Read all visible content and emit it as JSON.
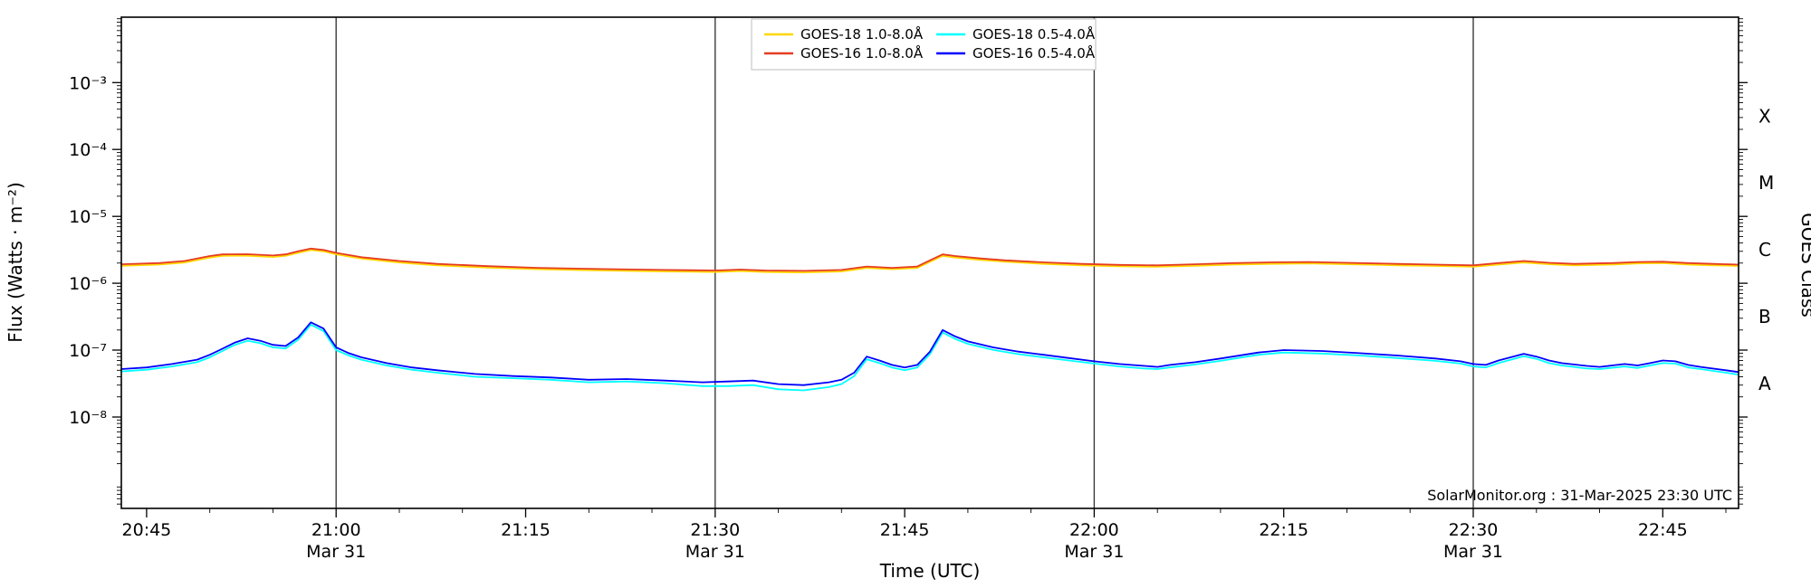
{
  "attribution": "SolarMonitor.org : 31-Mar-2025 23:30 UTC",
  "colors": {
    "background": "#ffffff",
    "axis": "#000000",
    "date_line": "#3a3a3a",
    "goes18_long": "#ffd700",
    "goes16_long": "#e63c22",
    "goes18_short": "#00ffff",
    "goes16_short": "#0000ff"
  },
  "chart_data": {
    "type": "line",
    "title": "",
    "xlabel": "Time (UTC)",
    "ylabel": "Flux (Watts · m⁻²)",
    "ylabel_right": "GOES Class",
    "x_axis_unit": "minutes-of-day UTC on 31-Mar-2025",
    "x_domain": [
      1243,
      1371
    ],
    "ylim": [
      4.3e-10,
      0.0095
    ],
    "y_scale": "log",
    "legend_position": "top-center",
    "grid": "vertical date lines only",
    "x_minor_step_min": 5,
    "date_lines": [
      1260,
      1290,
      1320,
      1350
    ],
    "x_ticks": [
      {
        "m": 1245,
        "label": "20:45",
        "date": ""
      },
      {
        "m": 1260,
        "label": "21:00",
        "date": "Mar 31"
      },
      {
        "m": 1275,
        "label": "21:15",
        "date": ""
      },
      {
        "m": 1290,
        "label": "21:30",
        "date": "Mar 31"
      },
      {
        "m": 1305,
        "label": "21:45",
        "date": ""
      },
      {
        "m": 1320,
        "label": "22:00",
        "date": "Mar 31"
      },
      {
        "m": 1335,
        "label": "22:15",
        "date": ""
      },
      {
        "m": 1350,
        "label": "22:30",
        "date": "Mar 31"
      },
      {
        "m": 1365,
        "label": "22:45",
        "date": ""
      }
    ],
    "y_ticks": [
      {
        "v": 0.001,
        "label": "10⁻³"
      },
      {
        "v": 0.0001,
        "label": "10⁻⁴"
      },
      {
        "v": 1e-05,
        "label": "10⁻⁵"
      },
      {
        "v": 1e-06,
        "label": "10⁻⁶"
      },
      {
        "v": 1e-07,
        "label": "10⁻⁷"
      },
      {
        "v": 1e-08,
        "label": "10⁻⁸"
      }
    ],
    "class_labels": [
      {
        "v": 0.000316,
        "label": "X"
      },
      {
        "v": 3.16e-05,
        "label": "M"
      },
      {
        "v": 3.16e-06,
        "label": "C"
      },
      {
        "v": 3.16e-07,
        "label": "B"
      },
      {
        "v": 3.16e-08,
        "label": "A"
      }
    ],
    "series": [
      {
        "id": "goes18-long",
        "label": "GOES-18 1.0-8.0Å",
        "color": "#ffd700",
        "points": [
          [
            1243,
            1.82e-06
          ],
          [
            1246,
            1.9e-06
          ],
          [
            1248,
            2.04e-06
          ],
          [
            1250,
            2.42e-06
          ],
          [
            1251,
            2.57e-06
          ],
          [
            1253,
            2.58e-06
          ],
          [
            1255,
            2.47e-06
          ],
          [
            1256,
            2.57e-06
          ],
          [
            1257,
            2.85e-06
          ],
          [
            1258,
            3.14e-06
          ],
          [
            1259,
            2.99e-06
          ],
          [
            1260,
            2.71e-06
          ],
          [
            1262,
            2.33e-06
          ],
          [
            1265,
            2.04e-06
          ],
          [
            1268,
            1.85e-06
          ],
          [
            1272,
            1.71e-06
          ],
          [
            1276,
            1.62e-06
          ],
          [
            1281,
            1.55e-06
          ],
          [
            1286,
            1.5e-06
          ],
          [
            1290,
            1.47e-06
          ],
          [
            1292,
            1.52e-06
          ],
          [
            1294,
            1.47e-06
          ],
          [
            1297,
            1.45e-06
          ],
          [
            1300,
            1.5e-06
          ],
          [
            1302,
            1.69e-06
          ],
          [
            1304,
            1.62e-06
          ],
          [
            1306,
            1.69e-06
          ],
          [
            1307,
            2.09e-06
          ],
          [
            1308,
            2.57e-06
          ],
          [
            1309,
            2.42e-06
          ],
          [
            1311,
            2.23e-06
          ],
          [
            1313,
            2.09e-06
          ],
          [
            1316,
            1.95e-06
          ],
          [
            1319,
            1.85e-06
          ],
          [
            1322,
            1.79e-06
          ],
          [
            1325,
            1.76e-06
          ],
          [
            1328,
            1.82e-06
          ],
          [
            1331,
            1.9e-06
          ],
          [
            1334,
            1.95e-06
          ],
          [
            1337,
            1.98e-06
          ],
          [
            1340,
            1.92e-06
          ],
          [
            1344,
            1.85e-06
          ],
          [
            1347,
            1.81e-06
          ],
          [
            1350,
            1.76e-06
          ],
          [
            1352,
            1.9e-06
          ],
          [
            1354,
            2.04e-06
          ],
          [
            1356,
            1.92e-06
          ],
          [
            1358,
            1.85e-06
          ],
          [
            1361,
            1.9e-06
          ],
          [
            1363,
            1.98e-06
          ],
          [
            1365,
            2e-06
          ],
          [
            1367,
            1.9e-06
          ],
          [
            1369,
            1.85e-06
          ],
          [
            1371,
            1.81e-06
          ]
        ]
      },
      {
        "id": "goes16-long",
        "label": "GOES-16 1.0-8.0Å",
        "color": "#e63c22",
        "points": [
          [
            1243,
            1.92e-06
          ],
          [
            1246,
            2e-06
          ],
          [
            1248,
            2.15e-06
          ],
          [
            1250,
            2.55e-06
          ],
          [
            1251,
            2.7e-06
          ],
          [
            1253,
            2.72e-06
          ],
          [
            1255,
            2.6e-06
          ],
          [
            1256,
            2.7e-06
          ],
          [
            1257,
            3e-06
          ],
          [
            1258,
            3.3e-06
          ],
          [
            1259,
            3.15e-06
          ],
          [
            1260,
            2.85e-06
          ],
          [
            1262,
            2.45e-06
          ],
          [
            1265,
            2.15e-06
          ],
          [
            1268,
            1.95e-06
          ],
          [
            1272,
            1.8e-06
          ],
          [
            1276,
            1.7e-06
          ],
          [
            1281,
            1.63e-06
          ],
          [
            1286,
            1.58e-06
          ],
          [
            1290,
            1.55e-06
          ],
          [
            1292,
            1.6e-06
          ],
          [
            1294,
            1.55e-06
          ],
          [
            1297,
            1.53e-06
          ],
          [
            1300,
            1.58e-06
          ],
          [
            1302,
            1.78e-06
          ],
          [
            1304,
            1.7e-06
          ],
          [
            1306,
            1.78e-06
          ],
          [
            1307,
            2.2e-06
          ],
          [
            1308,
            2.7e-06
          ],
          [
            1309,
            2.55e-06
          ],
          [
            1311,
            2.35e-06
          ],
          [
            1313,
            2.2e-06
          ],
          [
            1316,
            2.05e-06
          ],
          [
            1319,
            1.95e-06
          ],
          [
            1322,
            1.88e-06
          ],
          [
            1325,
            1.85e-06
          ],
          [
            1328,
            1.92e-06
          ],
          [
            1331,
            2e-06
          ],
          [
            1334,
            2.05e-06
          ],
          [
            1337,
            2.08e-06
          ],
          [
            1340,
            2.02e-06
          ],
          [
            1344,
            1.95e-06
          ],
          [
            1347,
            1.9e-06
          ],
          [
            1350,
            1.85e-06
          ],
          [
            1352,
            2e-06
          ],
          [
            1354,
            2.15e-06
          ],
          [
            1356,
            2.02e-06
          ],
          [
            1358,
            1.95e-06
          ],
          [
            1361,
            2e-06
          ],
          [
            1363,
            2.08e-06
          ],
          [
            1365,
            2.1e-06
          ],
          [
            1367,
            2e-06
          ],
          [
            1369,
            1.95e-06
          ],
          [
            1371,
            1.9e-06
          ]
        ]
      },
      {
        "id": "goes18-short",
        "label": "GOES-18 0.5-4.0Å",
        "color": "#00ffff",
        "points": [
          [
            1243,
            4.8e-08
          ],
          [
            1245,
            5.1e-08
          ],
          [
            1247,
            5.7e-08
          ],
          [
            1249,
            6.6e-08
          ],
          [
            1250,
            7.8e-08
          ],
          [
            1251,
            9.7e-08
          ],
          [
            1252,
            1.2e-07
          ],
          [
            1253,
            1.38e-07
          ],
          [
            1254,
            1.27e-07
          ],
          [
            1255,
            1.1e-07
          ],
          [
            1256,
            1.06e-07
          ],
          [
            1257,
            1.43e-07
          ],
          [
            1258,
            2.4e-07
          ],
          [
            1259,
            1.93e-07
          ],
          [
            1260,
            1e-07
          ],
          [
            1261,
            8.3e-08
          ],
          [
            1262,
            7.2e-08
          ],
          [
            1264,
            5.9e-08
          ],
          [
            1266,
            5.1e-08
          ],
          [
            1268,
            4.6e-08
          ],
          [
            1271,
            4e-08
          ],
          [
            1274,
            3.8e-08
          ],
          [
            1277,
            3.6e-08
          ],
          [
            1280,
            3.3e-08
          ],
          [
            1283,
            3.4e-08
          ],
          [
            1286,
            3.2e-08
          ],
          [
            1289,
            2.9e-08
          ],
          [
            1291,
            2.9e-08
          ],
          [
            1293,
            3e-08
          ],
          [
            1295,
            2.6e-08
          ],
          [
            1297,
            2.5e-08
          ],
          [
            1299,
            2.8e-08
          ],
          [
            1300,
            3.1e-08
          ],
          [
            1301,
            4.1e-08
          ],
          [
            1302,
            7.3e-08
          ],
          [
            1303,
            6.4e-08
          ],
          [
            1304,
            5.5e-08
          ],
          [
            1305,
            5e-08
          ],
          [
            1306,
            5.5e-08
          ],
          [
            1307,
            8.7e-08
          ],
          [
            1308,
            1.84e-07
          ],
          [
            1309,
            1.47e-07
          ],
          [
            1310,
            1.24e-07
          ],
          [
            1312,
            1.01e-07
          ],
          [
            1314,
            8.7e-08
          ],
          [
            1316,
            7.8e-08
          ],
          [
            1318,
            7e-08
          ],
          [
            1320,
            6.3e-08
          ],
          [
            1322,
            5.7e-08
          ],
          [
            1324,
            5.3e-08
          ],
          [
            1325,
            5.2e-08
          ],
          [
            1326,
            5.5e-08
          ],
          [
            1328,
            6.1e-08
          ],
          [
            1330,
            6.9e-08
          ],
          [
            1333,
            8.5e-08
          ],
          [
            1335,
            9.2e-08
          ],
          [
            1338,
            8.9e-08
          ],
          [
            1341,
            8.3e-08
          ],
          [
            1344,
            7.6e-08
          ],
          [
            1347,
            6.9e-08
          ],
          [
            1349,
            6.3e-08
          ],
          [
            1350,
            5.7e-08
          ],
          [
            1351,
            5.5e-08
          ],
          [
            1352,
            6.4e-08
          ],
          [
            1354,
            8.1e-08
          ],
          [
            1355,
            7.4e-08
          ],
          [
            1356,
            6.4e-08
          ],
          [
            1357,
            5.9e-08
          ],
          [
            1359,
            5.3e-08
          ],
          [
            1360,
            5.2e-08
          ],
          [
            1362,
            5.7e-08
          ],
          [
            1363,
            5.4e-08
          ],
          [
            1364,
            5.9e-08
          ],
          [
            1365,
            6.4e-08
          ],
          [
            1366,
            6.3e-08
          ],
          [
            1367,
            5.5e-08
          ],
          [
            1368,
            5.2e-08
          ],
          [
            1370,
            4.6e-08
          ],
          [
            1371,
            4.3e-08
          ]
        ]
      },
      {
        "id": "goes16-short",
        "label": "GOES-16 0.5-4.0Å",
        "color": "#0000ff",
        "points": [
          [
            1243,
            5.2e-08
          ],
          [
            1245,
            5.5e-08
          ],
          [
            1247,
            6.2e-08
          ],
          [
            1249,
            7.2e-08
          ],
          [
            1250,
            8.5e-08
          ],
          [
            1251,
            1.05e-07
          ],
          [
            1252,
            1.3e-07
          ],
          [
            1253,
            1.5e-07
          ],
          [
            1254,
            1.38e-07
          ],
          [
            1255,
            1.2e-07
          ],
          [
            1256,
            1.15e-07
          ],
          [
            1257,
            1.55e-07
          ],
          [
            1258,
            2.6e-07
          ],
          [
            1259,
            2.1e-07
          ],
          [
            1260,
            1.1e-07
          ],
          [
            1261,
            9e-08
          ],
          [
            1262,
            7.8e-08
          ],
          [
            1264,
            6.4e-08
          ],
          [
            1266,
            5.5e-08
          ],
          [
            1268,
            5e-08
          ],
          [
            1271,
            4.4e-08
          ],
          [
            1274,
            4.1e-08
          ],
          [
            1277,
            3.9e-08
          ],
          [
            1280,
            3.6e-08
          ],
          [
            1283,
            3.7e-08
          ],
          [
            1286,
            3.5e-08
          ],
          [
            1289,
            3.3e-08
          ],
          [
            1291,
            3.4e-08
          ],
          [
            1293,
            3.5e-08
          ],
          [
            1295,
            3.1e-08
          ],
          [
            1297,
            3e-08
          ],
          [
            1299,
            3.3e-08
          ],
          [
            1300,
            3.6e-08
          ],
          [
            1301,
            4.6e-08
          ],
          [
            1302,
            8e-08
          ],
          [
            1303,
            7e-08
          ],
          [
            1304,
            6e-08
          ],
          [
            1305,
            5.5e-08
          ],
          [
            1306,
            6e-08
          ],
          [
            1307,
            9.5e-08
          ],
          [
            1308,
            2e-07
          ],
          [
            1309,
            1.6e-07
          ],
          [
            1310,
            1.35e-07
          ],
          [
            1312,
            1.1e-07
          ],
          [
            1314,
            9.5e-08
          ],
          [
            1316,
            8.5e-08
          ],
          [
            1318,
            7.6e-08
          ],
          [
            1320,
            6.8e-08
          ],
          [
            1322,
            6.2e-08
          ],
          [
            1324,
            5.8e-08
          ],
          [
            1325,
            5.6e-08
          ],
          [
            1326,
            6e-08
          ],
          [
            1328,
            6.6e-08
          ],
          [
            1330,
            7.5e-08
          ],
          [
            1333,
            9.2e-08
          ],
          [
            1335,
            1e-07
          ],
          [
            1338,
            9.7e-08
          ],
          [
            1341,
            9e-08
          ],
          [
            1344,
            8.3e-08
          ],
          [
            1347,
            7.5e-08
          ],
          [
            1349,
            6.8e-08
          ],
          [
            1350,
            6.2e-08
          ],
          [
            1351,
            6e-08
          ],
          [
            1352,
            7e-08
          ],
          [
            1354,
            8.8e-08
          ],
          [
            1355,
            8e-08
          ],
          [
            1356,
            7e-08
          ],
          [
            1357,
            6.4e-08
          ],
          [
            1359,
            5.8e-08
          ],
          [
            1360,
            5.6e-08
          ],
          [
            1362,
            6.2e-08
          ],
          [
            1363,
            5.9e-08
          ],
          [
            1364,
            6.4e-08
          ],
          [
            1365,
            7e-08
          ],
          [
            1366,
            6.8e-08
          ],
          [
            1367,
            6e-08
          ],
          [
            1368,
            5.6e-08
          ],
          [
            1370,
            5e-08
          ],
          [
            1371,
            4.7e-08
          ]
        ]
      }
    ]
  }
}
